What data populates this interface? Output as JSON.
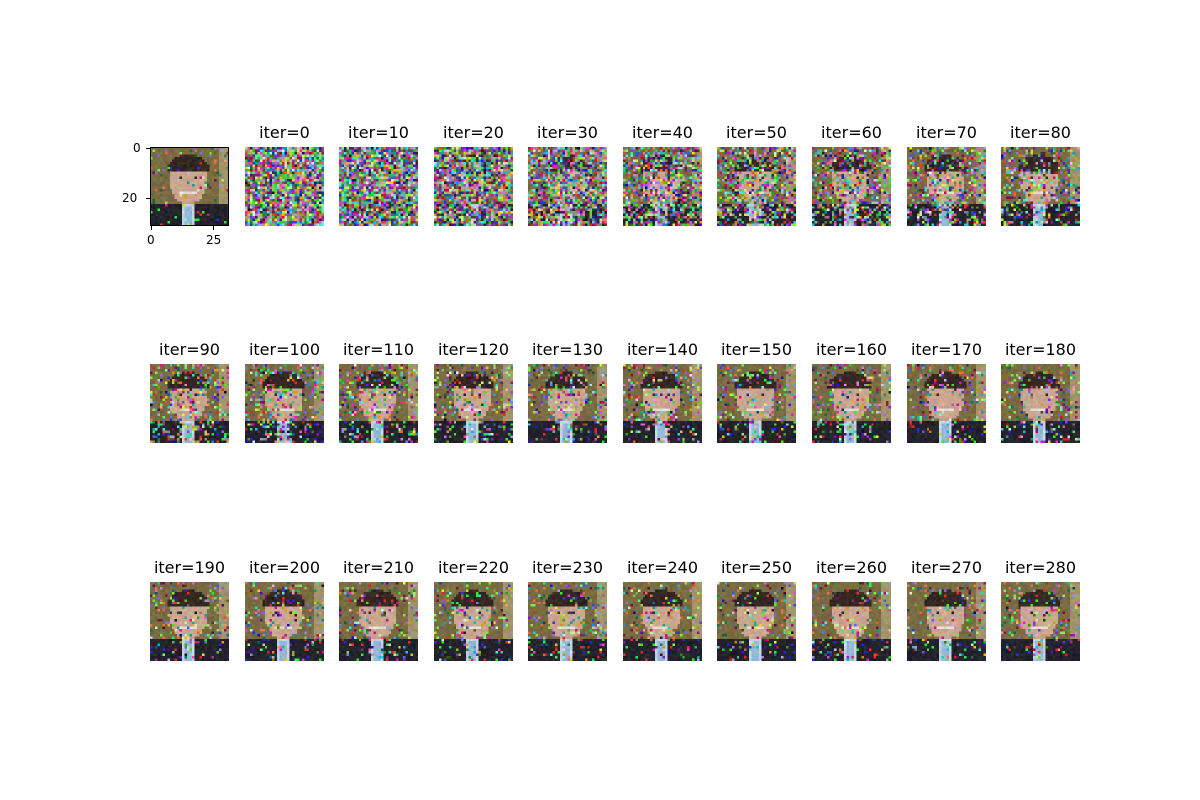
{
  "original": {
    "y_ticks": [
      "0",
      "20"
    ],
    "x_ticks": [
      "0",
      "25"
    ]
  },
  "panels": [
    {
      "title": "iter=0",
      "reveal": 0.0
    },
    {
      "title": "iter=10",
      "reveal": 0.05
    },
    {
      "title": "iter=20",
      "reveal": 0.14
    },
    {
      "title": "iter=30",
      "reveal": 0.24
    },
    {
      "title": "iter=40",
      "reveal": 0.36
    },
    {
      "title": "iter=50",
      "reveal": 0.46
    },
    {
      "title": "iter=60",
      "reveal": 0.55
    },
    {
      "title": "iter=70",
      "reveal": 0.62
    },
    {
      "title": "iter=80",
      "reveal": 0.68
    },
    {
      "title": "iter=90",
      "reveal": 0.72
    },
    {
      "title": "iter=100",
      "reveal": 0.75
    },
    {
      "title": "iter=110",
      "reveal": 0.77
    },
    {
      "title": "iter=120",
      "reveal": 0.8
    },
    {
      "title": "iter=130",
      "reveal": 0.82
    },
    {
      "title": "iter=140",
      "reveal": 0.84
    },
    {
      "title": "iter=150",
      "reveal": 0.85
    },
    {
      "title": "iter=160",
      "reveal": 0.86
    },
    {
      "title": "iter=170",
      "reveal": 0.87
    },
    {
      "title": "iter=180",
      "reveal": 0.88
    },
    {
      "title": "iter=190",
      "reveal": 0.89
    },
    {
      "title": "iter=200",
      "reveal": 0.9
    },
    {
      "title": "iter=210",
      "reveal": 0.9
    },
    {
      "title": "iter=220",
      "reveal": 0.91
    },
    {
      "title": "iter=230",
      "reveal": 0.91
    },
    {
      "title": "iter=240",
      "reveal": 0.92
    },
    {
      "title": "iter=250",
      "reveal": 0.92
    },
    {
      "title": "iter=260",
      "reveal": 0.92
    },
    {
      "title": "iter=270",
      "reveal": 0.93
    },
    {
      "title": "iter=280",
      "reveal": 0.93
    }
  ]
}
